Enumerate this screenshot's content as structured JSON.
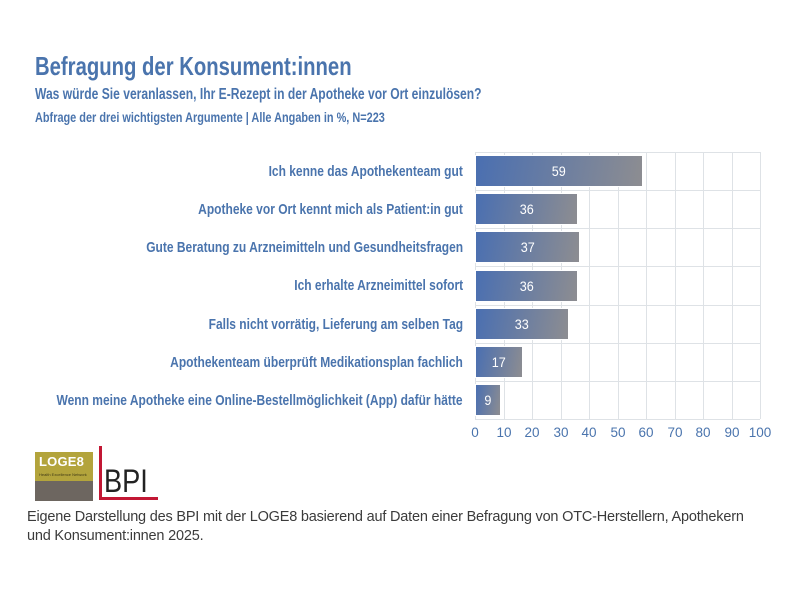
{
  "title": "Befragung der Konsument:innen",
  "subtitle": "Was würde Sie veranlassen, Ihr E-Rezept in der Apotheke vor Ort einzulösen?",
  "note": "Abfrage der drei wichtigsten Argumente | Alle Angaben in %, N=223",
  "chart_data": {
    "type": "bar",
    "orientation": "horizontal",
    "categories": [
      "Ich kenne das Apothekenteam gut",
      "Apotheke vor Ort kennt mich als Patient:in gut",
      "Gute Beratung zu Arzneimitteln und Gesundheitsfragen",
      "Ich erhalte Arzneimittel sofort",
      "Falls nicht vorrätig, Lieferung am selben Tag",
      "Apothekenteam überprüft Medikationsplan fachlich",
      "Wenn meine Apotheke eine Online-Bestellmöglichkeit (App) dafür hätte"
    ],
    "values": [
      59,
      36,
      37,
      36,
      33,
      17,
      9
    ],
    "value_unit": "%",
    "xlim": [
      0,
      100
    ],
    "xticks": [
      0,
      10,
      20,
      30,
      40,
      50,
      60,
      70,
      80,
      90,
      100
    ],
    "grid": true,
    "bar_gradient_start": "#4a6fb1",
    "bar_gradient_end": "#8d8d91",
    "value_label_color": "#ffffff",
    "category_label_color": "#4a74ad",
    "tick_label_color": "#4a74ad",
    "gridline_color": "#dee2e6"
  },
  "logos": {
    "loge8": {
      "wordmark": "LOGE8",
      "tagline": "Health Excellence Network",
      "yellow": "#b3a43c",
      "gray": "#6d6660"
    },
    "bpi": {
      "wordmark": "BPI",
      "accent_red": "#c21734"
    }
  },
  "footer": {
    "line1": "Eigene Darstellung des BPI mit der LOGE8 basierend auf Daten einer Befragung von OTC-Herstellern, Apothekern",
    "line2": "und Konsument:innen 2025."
  },
  "colors": {
    "heading_blue": "#4a74ad",
    "footer_text": "#3b3b3b",
    "background": "#ffffff"
  }
}
